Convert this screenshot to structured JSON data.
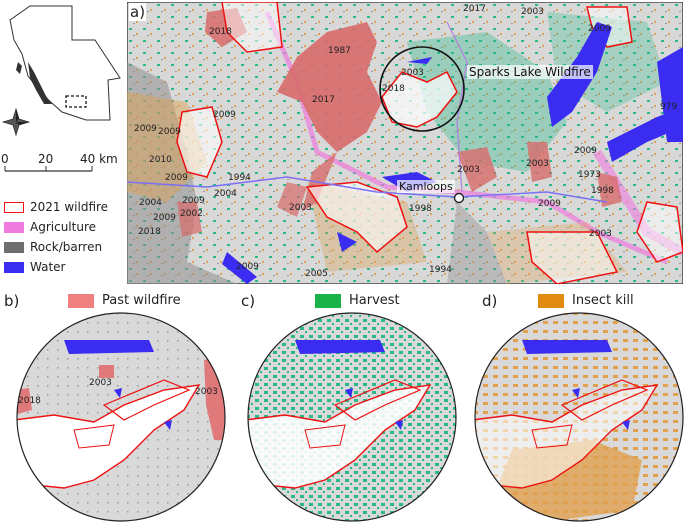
{
  "inset": {
    "scale_ticks": [
      "0",
      "20",
      "40 km"
    ]
  },
  "legend": [
    {
      "label": "2021 wildfire",
      "color": "#e11",
      "style": "outline"
    },
    {
      "label": "Agriculture",
      "color": "#f07ce0",
      "style": "fill"
    },
    {
      "label": "Rock/barren",
      "color": "#6e6e6e",
      "style": "fill"
    },
    {
      "label": "Water",
      "color": "#3a2cf0",
      "style": "fill"
    }
  ],
  "panel_a": {
    "letter": "a)",
    "years": [
      "2017",
      "2003",
      "2018",
      "1987",
      "2003",
      "2018",
      "2017",
      "2009",
      "2009",
      "2009",
      "2010",
      "2009",
      "1994",
      "2009",
      "2004",
      "2004",
      "2002",
      "2009",
      "2018",
      "2003",
      "2009",
      "2005",
      "1998",
      "2003",
      "2003",
      "1994",
      "2009",
      "1973",
      "1998",
      "2009",
      "2003",
      "979",
      "2009"
    ],
    "fire_label": "Sparks Lake Wildfire",
    "city_label": "Kamloops"
  },
  "panel_b": {
    "letter": "b)",
    "key": "Past wildfire",
    "key_color": "#f08080",
    "years": [
      "2003",
      "2018",
      "2003"
    ]
  },
  "panel_c": {
    "letter": "c)",
    "key": "Harvest",
    "key_color": "#19b34a"
  },
  "panel_d": {
    "letter": "d)",
    "key": "Insect kill",
    "key_color": "#e08a10"
  },
  "colors": {
    "background": "#d9d9d9",
    "wildfire": "#e11",
    "past_wildfire": "#e06a6a",
    "harvest": "#2bb98a",
    "insect": "#e0a050",
    "water": "#3a2cf0",
    "rock": "#6e6e6e",
    "agriculture": "#f07ce0"
  }
}
